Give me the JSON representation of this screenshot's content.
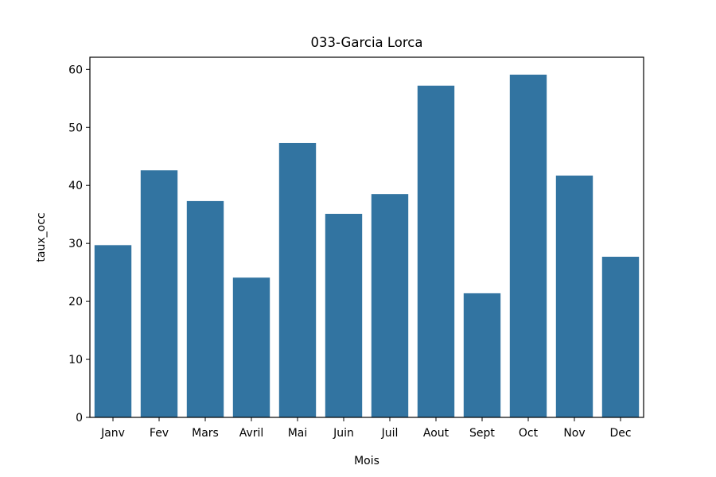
{
  "chart_data": {
    "type": "bar",
    "title": "033-Garcia Lorca",
    "xlabel": "Mois",
    "ylabel": "taux_occ",
    "categories": [
      "Janv",
      "Fev",
      "Mars",
      "Avril",
      "Mai",
      "Juin",
      "Juil",
      "Aout",
      "Sept",
      "Oct",
      "Nov",
      "Dec"
    ],
    "values": [
      29.7,
      42.6,
      37.3,
      24.1,
      47.3,
      35.1,
      38.5,
      57.2,
      21.4,
      59.1,
      41.7,
      27.7
    ],
    "ylim": [
      0,
      62.1
    ],
    "yticks": [
      0,
      10,
      20,
      30,
      40,
      50,
      60
    ],
    "grid": false,
    "bar_color": "#3274a1"
  }
}
